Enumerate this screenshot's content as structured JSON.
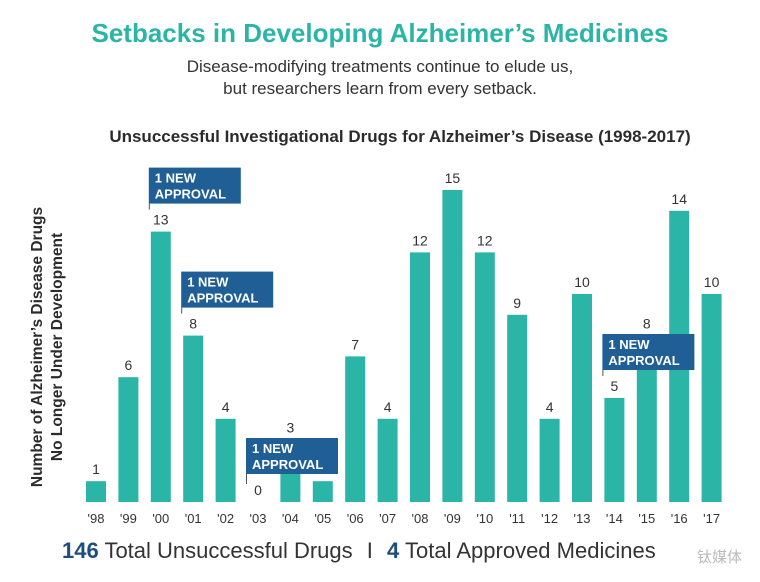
{
  "header": {
    "title": "Setbacks in Developing Alzheimer’s Medicines",
    "subtitle_line1": "Disease-modifying treatments continue to elude us,",
    "subtitle_line2": "but researchers learn from every setback."
  },
  "chart_data": {
    "type": "bar",
    "title": "Unsuccessful Investigational Drugs for Alzheimer’s Disease (1998-2017)",
    "ylabel_line1": "Number of Alzheimer’s Disease Drugs",
    "ylabel_line2": "No Longer Under Development",
    "xlabel": "",
    "categories": [
      "'98",
      "'99",
      "'00",
      "'01",
      "'02",
      "'03",
      "'04",
      "'05",
      "'06",
      "'07",
      "'08",
      "'09",
      "'10",
      "'11",
      "'12",
      "'13",
      "'14",
      "'15",
      "'16",
      "'17"
    ],
    "values": [
      1,
      6,
      13,
      8,
      4,
      0,
      3,
      1,
      7,
      4,
      12,
      15,
      12,
      9,
      4,
      10,
      5,
      8,
      14,
      10
    ],
    "ylim": [
      0,
      15
    ],
    "bar_color": "#2ab5a6",
    "annotations": [
      {
        "category": "'00",
        "line1": "1 NEW",
        "line2": "APPROVAL"
      },
      {
        "category": "'01",
        "line1": "1 NEW",
        "line2": "APPROVAL"
      },
      {
        "category": "'03",
        "line1": "1 NEW",
        "line2": "APPROVAL"
      },
      {
        "category": "'14",
        "line1": "1 NEW",
        "line2": "APPROVAL"
      }
    ],
    "annotation_color": "#1f5f96"
  },
  "footer": {
    "unsuccessful_count": "146",
    "unsuccessful_label": "Total Unsuccessful Drugs",
    "separator": "I",
    "approved_count": "4",
    "approved_label": "Total Approved Medicines"
  },
  "watermark": "钛媒体"
}
